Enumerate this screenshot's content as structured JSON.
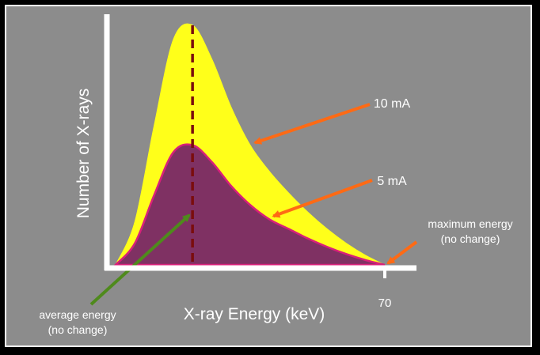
{
  "chart_data": {
    "type": "area",
    "xlabel": "X-ray Energy (keV)",
    "ylabel": "Number of X-rays",
    "x_tick_labels": [
      "70"
    ],
    "max_energy_keV": 70,
    "peak_energy_keV": 20,
    "series": [
      {
        "name": "10 mA",
        "x": [
          0,
          5,
          10,
          15,
          20,
          25,
          30,
          35,
          40,
          45,
          50,
          55,
          60,
          65,
          70
        ],
        "values": [
          0,
          0.18,
          0.58,
          0.94,
          1.0,
          0.86,
          0.66,
          0.5,
          0.39,
          0.3,
          0.22,
          0.15,
          0.09,
          0.04,
          0
        ]
      },
      {
        "name": "5 mA",
        "x": [
          0,
          5,
          10,
          15,
          20,
          25,
          30,
          35,
          40,
          45,
          50,
          55,
          60,
          65,
          70
        ],
        "values": [
          0,
          0.09,
          0.29,
          0.47,
          0.5,
          0.43,
          0.33,
          0.25,
          0.19,
          0.15,
          0.11,
          0.075,
          0.045,
          0.02,
          0
        ]
      }
    ],
    "annotations": [
      {
        "text": "10 mA",
        "target": "10 mA"
      },
      {
        "text": "5 mA",
        "target": "5 mA"
      },
      {
        "text": [
          "maximum energy",
          "(no change)"
        ],
        "target": "max"
      },
      {
        "text": [
          "average energy",
          "(no change)"
        ],
        "target": "avg"
      }
    ]
  },
  "colors": {
    "background": "#8c8c8c",
    "axes": "#ffffff",
    "series_10mA_fill": "#ffff1a",
    "series_5mA_fill": "#7f3163",
    "series_5mA_stroke": "#d8207a",
    "dashed_line": "#7a0d0d",
    "arrow_orange": "#ff6a14",
    "arrow_green": "#4f8a1c"
  }
}
